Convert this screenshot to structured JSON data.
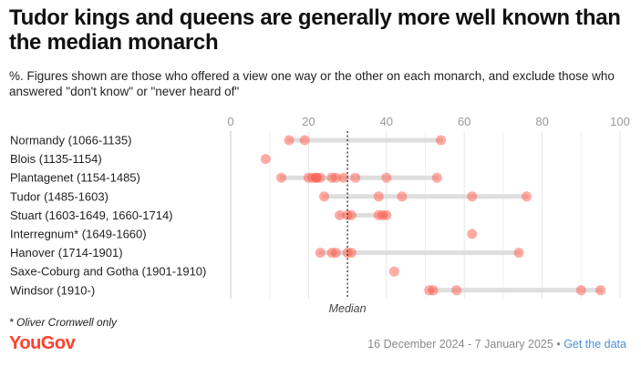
{
  "title": "Tudor kings and queens are generally more well known than the median monarch",
  "subtitle": "%. Figures shown are those who offered a view one way or the other on each monarch, and exclude those who answered \"don't know\" or \"never heard of\"",
  "footnote": "* Oliver Cromwell only",
  "logo": "YouGov",
  "source": {
    "dates": "16 December 2024 - 7 January 2025",
    "separator": "•",
    "link_label": "Get the data"
  },
  "colors": {
    "dot": "#ff5a4a",
    "range_bar": "#dedede",
    "grid": "#e6e6e6",
    "median_line": "#333333",
    "axis_text": "#999999",
    "brand": "#ff412c"
  },
  "chart_data": {
    "type": "scatter",
    "xlim": [
      0,
      100
    ],
    "x_ticks": [
      0,
      20,
      40,
      60,
      80,
      100
    ],
    "median": 30,
    "median_label": "Median",
    "categories": [
      "Normandy (1066-1135)",
      "Blois (1135-1154)",
      "Plantagenet (1154-1485)",
      "Tudor (1485-1603)",
      "Stuart (1603-1649, 1660-1714)",
      "Interregnum* (1649-1660)",
      "Hanover (1714-1901)",
      "Saxe-Coburg and Gotha (1901-1910)",
      "Windsor (1910-)"
    ],
    "values": [
      [
        15,
        19,
        54
      ],
      [
        9
      ],
      [
        13,
        20,
        21,
        22,
        22,
        23,
        26,
        27,
        29,
        32,
        40,
        53
      ],
      [
        24,
        38,
        44,
        62,
        76
      ],
      [
        28,
        30,
        31,
        38,
        39,
        40
      ],
      [
        62
      ],
      [
        23,
        26,
        27,
        30,
        31,
        74
      ],
      [
        42
      ],
      [
        51,
        52,
        58,
        90,
        95
      ]
    ]
  }
}
